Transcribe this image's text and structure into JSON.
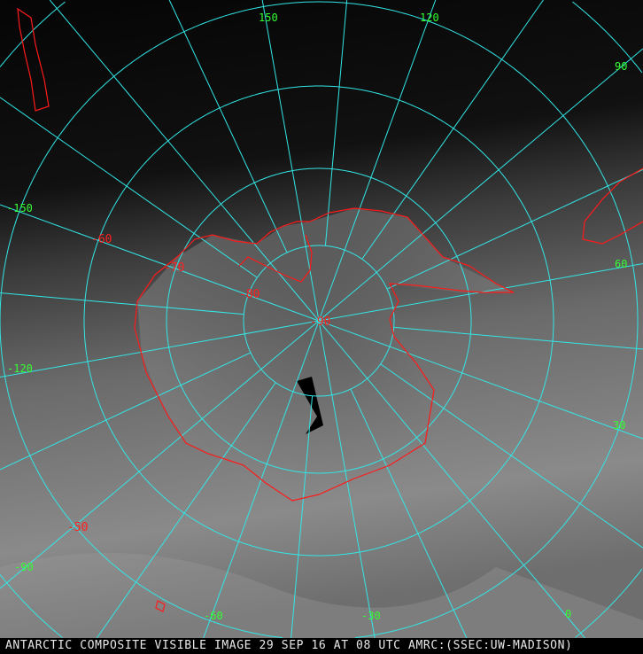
{
  "caption": "ANTARCTIC COMPOSITE VISIBLE IMAGE 29 SEP 16 AT 08 UTC AMRC:(SSEC:UW-MADISON)",
  "colors": {
    "grid": "#33e6e6",
    "coastline": "#ff1a1a",
    "longitude_labels": "#33ff33",
    "latitude_labels": "#ff2020"
  },
  "longitude_labels": [
    "150",
    "120",
    "90",
    "60",
    "30",
    "0",
    "-30",
    "-60",
    "-90",
    "-120",
    "-150"
  ],
  "latitude_labels": [
    "-90",
    "-80",
    "-70",
    "-60",
    "-50"
  ]
}
